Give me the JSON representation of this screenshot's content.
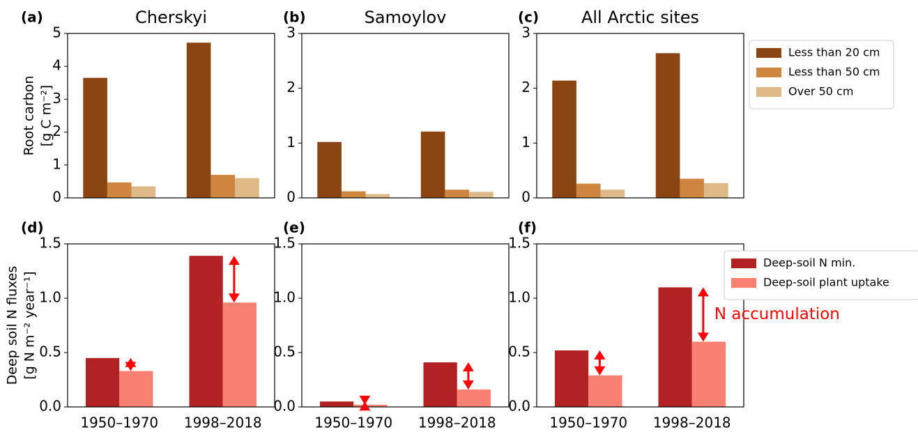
{
  "chart_data": [
    {
      "type": "bar",
      "label": "(a)",
      "title": "Cherskyi",
      "ylabel": [
        "Root carbon",
        "[g C m⁻²]"
      ],
      "categories": [
        null,
        null
      ],
      "series": [
        {
          "color": "#8b4513",
          "values": [
            3.65,
            4.72
          ]
        },
        {
          "color": "#cd853f",
          "values": [
            0.47,
            0.7
          ]
        },
        {
          "color": "#deb887",
          "values": [
            0.35,
            0.6
          ]
        }
      ],
      "ylim": [
        0,
        5
      ],
      "yticks": [
        0,
        1,
        2,
        3,
        4,
        5
      ]
    },
    {
      "type": "bar",
      "label": "(b)",
      "title": "Samoylov",
      "categories": [
        null,
        null
      ],
      "series": [
        {
          "color": "#8b4513",
          "values": [
            1.02,
            1.21
          ]
        },
        {
          "color": "#cd853f",
          "values": [
            0.12,
            0.15
          ]
        },
        {
          "color": "#deb887",
          "values": [
            0.07,
            0.11
          ]
        }
      ],
      "ylim": [
        0,
        3
      ],
      "yticks": [
        0,
        1,
        2,
        3
      ]
    },
    {
      "type": "bar",
      "label": "(c)",
      "title": "All Arctic sites",
      "categories": [
        null,
        null
      ],
      "series": [
        {
          "name": "Less than 20 cm",
          "color": "#8b4513",
          "values": [
            2.14,
            2.64
          ]
        },
        {
          "name": "Less than 50 cm",
          "color": "#cd853f",
          "values": [
            0.26,
            0.35
          ]
        },
        {
          "name": "Over 50 cm",
          "color": "#deb887",
          "values": [
            0.15,
            0.27
          ]
        }
      ],
      "ylim": [
        0,
        3
      ],
      "yticks": [
        0,
        1,
        2,
        3
      ],
      "legend": "outside right"
    },
    {
      "type": "bar",
      "label": "(d)",
      "ylabel": [
        "Deep soil N fluxes",
        "[g N m⁻² year⁻¹]"
      ],
      "categories": [
        "1950–1970",
        "1998–2018"
      ],
      "series": [
        {
          "color": "#b22222",
          "values": [
            0.45,
            1.39
          ]
        },
        {
          "color": "#fa8072",
          "values": [
            0.33,
            0.96
          ]
        }
      ],
      "ylim": [
        0,
        1.5
      ],
      "yticks": [
        {
          "value": 0,
          "label": "0.0"
        },
        {
          "value": 0.5,
          "label": "0.5"
        },
        {
          "value": 1,
          "label": "1.0"
        },
        {
          "value": 1.5,
          "label": "1.5"
        }
      ],
      "arrows": true
    },
    {
      "type": "bar",
      "label": "(e)",
      "categories": [
        "1950–1970",
        "1998–2018"
      ],
      "series": [
        {
          "color": "#b22222",
          "values": [
            0.05,
            0.41
          ]
        },
        {
          "color": "#fa8072",
          "values": [
            0.02,
            0.16
          ]
        }
      ],
      "ylim": [
        0,
        1.5
      ],
      "yticks": [
        {
          "value": 0,
          "label": "0.0"
        },
        {
          "value": 0.5,
          "label": "0.5"
        },
        {
          "value": 1,
          "label": "1.0"
        },
        {
          "value": 1.5,
          "label": "1.5"
        }
      ],
      "arrows": true
    },
    {
      "type": "bar",
      "label": "(f)",
      "categories": [
        "1950–1970",
        "1998–2018"
      ],
      "series": [
        {
          "name": "Deep-soil N min.",
          "color": "#b22222",
          "values": [
            0.52,
            1.1
          ]
        },
        {
          "name": "Deep-soil plant uptake",
          "color": "#fa8072",
          "values": [
            0.29,
            0.6
          ]
        }
      ],
      "ylim": [
        0,
        1.5
      ],
      "yticks": [
        {
          "value": 0,
          "label": "0.0"
        },
        {
          "value": 0.5,
          "label": "0.5"
        },
        {
          "value": 1,
          "label": "1.0"
        },
        {
          "value": 1.5,
          "label": "1.5"
        }
      ],
      "arrows": true,
      "legend": "outside right",
      "annotation": "N accumulation"
    }
  ]
}
